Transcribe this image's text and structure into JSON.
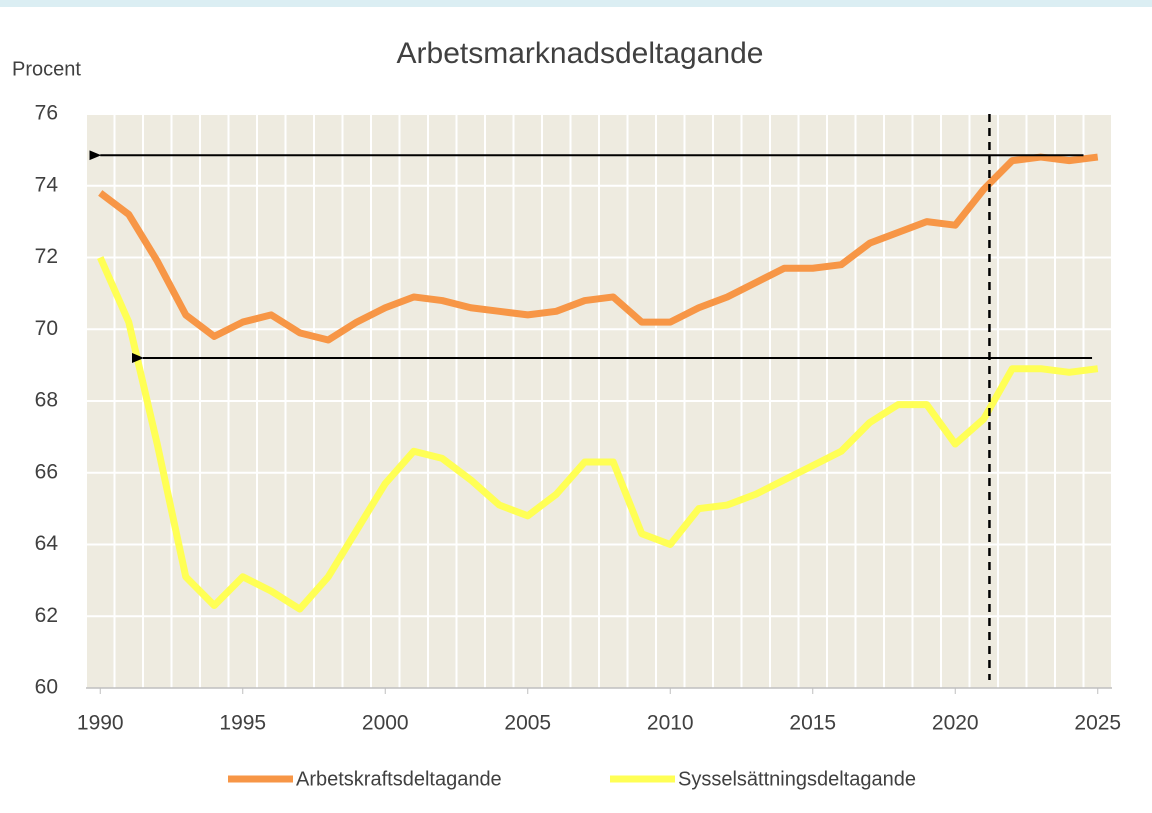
{
  "chart_data": {
    "type": "line",
    "title": "Arbetsmarknadsdeltagande",
    "y_label": "Procent",
    "x": [
      1990,
      1991,
      1992,
      1993,
      1994,
      1995,
      1996,
      1997,
      1998,
      1999,
      2000,
      2001,
      2002,
      2003,
      2004,
      2005,
      2006,
      2007,
      2008,
      2009,
      2010,
      2011,
      2012,
      2013,
      2014,
      2015,
      2016,
      2017,
      2018,
      2019,
      2020,
      2021,
      2022,
      2023,
      2024,
      2025
    ],
    "series": [
      {
        "name": "Arbetskraftsdeltagande",
        "color": "#f79646",
        "values": [
          73.8,
          73.2,
          71.9,
          70.4,
          69.8,
          70.2,
          70.4,
          69.9,
          69.7,
          70.2,
          70.6,
          70.9,
          70.8,
          70.6,
          70.5,
          70.4,
          70.5,
          70.8,
          70.9,
          70.2,
          70.2,
          70.6,
          70.9,
          71.3,
          71.7,
          71.7,
          71.8,
          72.4,
          72.7,
          73.0,
          72.9,
          73.9,
          74.7,
          74.8,
          74.7,
          74.8
        ]
      },
      {
        "name": "Sysselsättningsdeltagande",
        "color": "#ffff55",
        "values": [
          72.0,
          70.2,
          66.8,
          63.1,
          62.3,
          63.1,
          62.7,
          62.2,
          63.1,
          64.4,
          65.7,
          66.6,
          66.4,
          65.8,
          65.1,
          64.8,
          65.4,
          66.3,
          66.3,
          64.3,
          64.0,
          65.0,
          65.1,
          65.4,
          65.8,
          66.2,
          66.6,
          67.4,
          67.9,
          67.9,
          66.8,
          67.5,
          68.9,
          68.9,
          68.8,
          68.9
        ]
      }
    ],
    "xlim": [
      1989.5,
      2025.5
    ],
    "xticks": [
      1990,
      1995,
      2000,
      2005,
      2010,
      2015,
      2020,
      2025
    ],
    "ylim": [
      60,
      76
    ],
    "yticks": [
      60,
      62,
      64,
      66,
      68,
      70,
      72,
      74,
      76
    ],
    "grid": true,
    "arrows": [
      {
        "y": 74.85,
        "x_from": 2024.5,
        "x_to": 1990
      },
      {
        "y": 69.2,
        "x_from": 2024.8,
        "x_to": 1991.5
      }
    ],
    "vline": {
      "x": 2021.2,
      "dashed": true
    },
    "legend": "bottom"
  }
}
